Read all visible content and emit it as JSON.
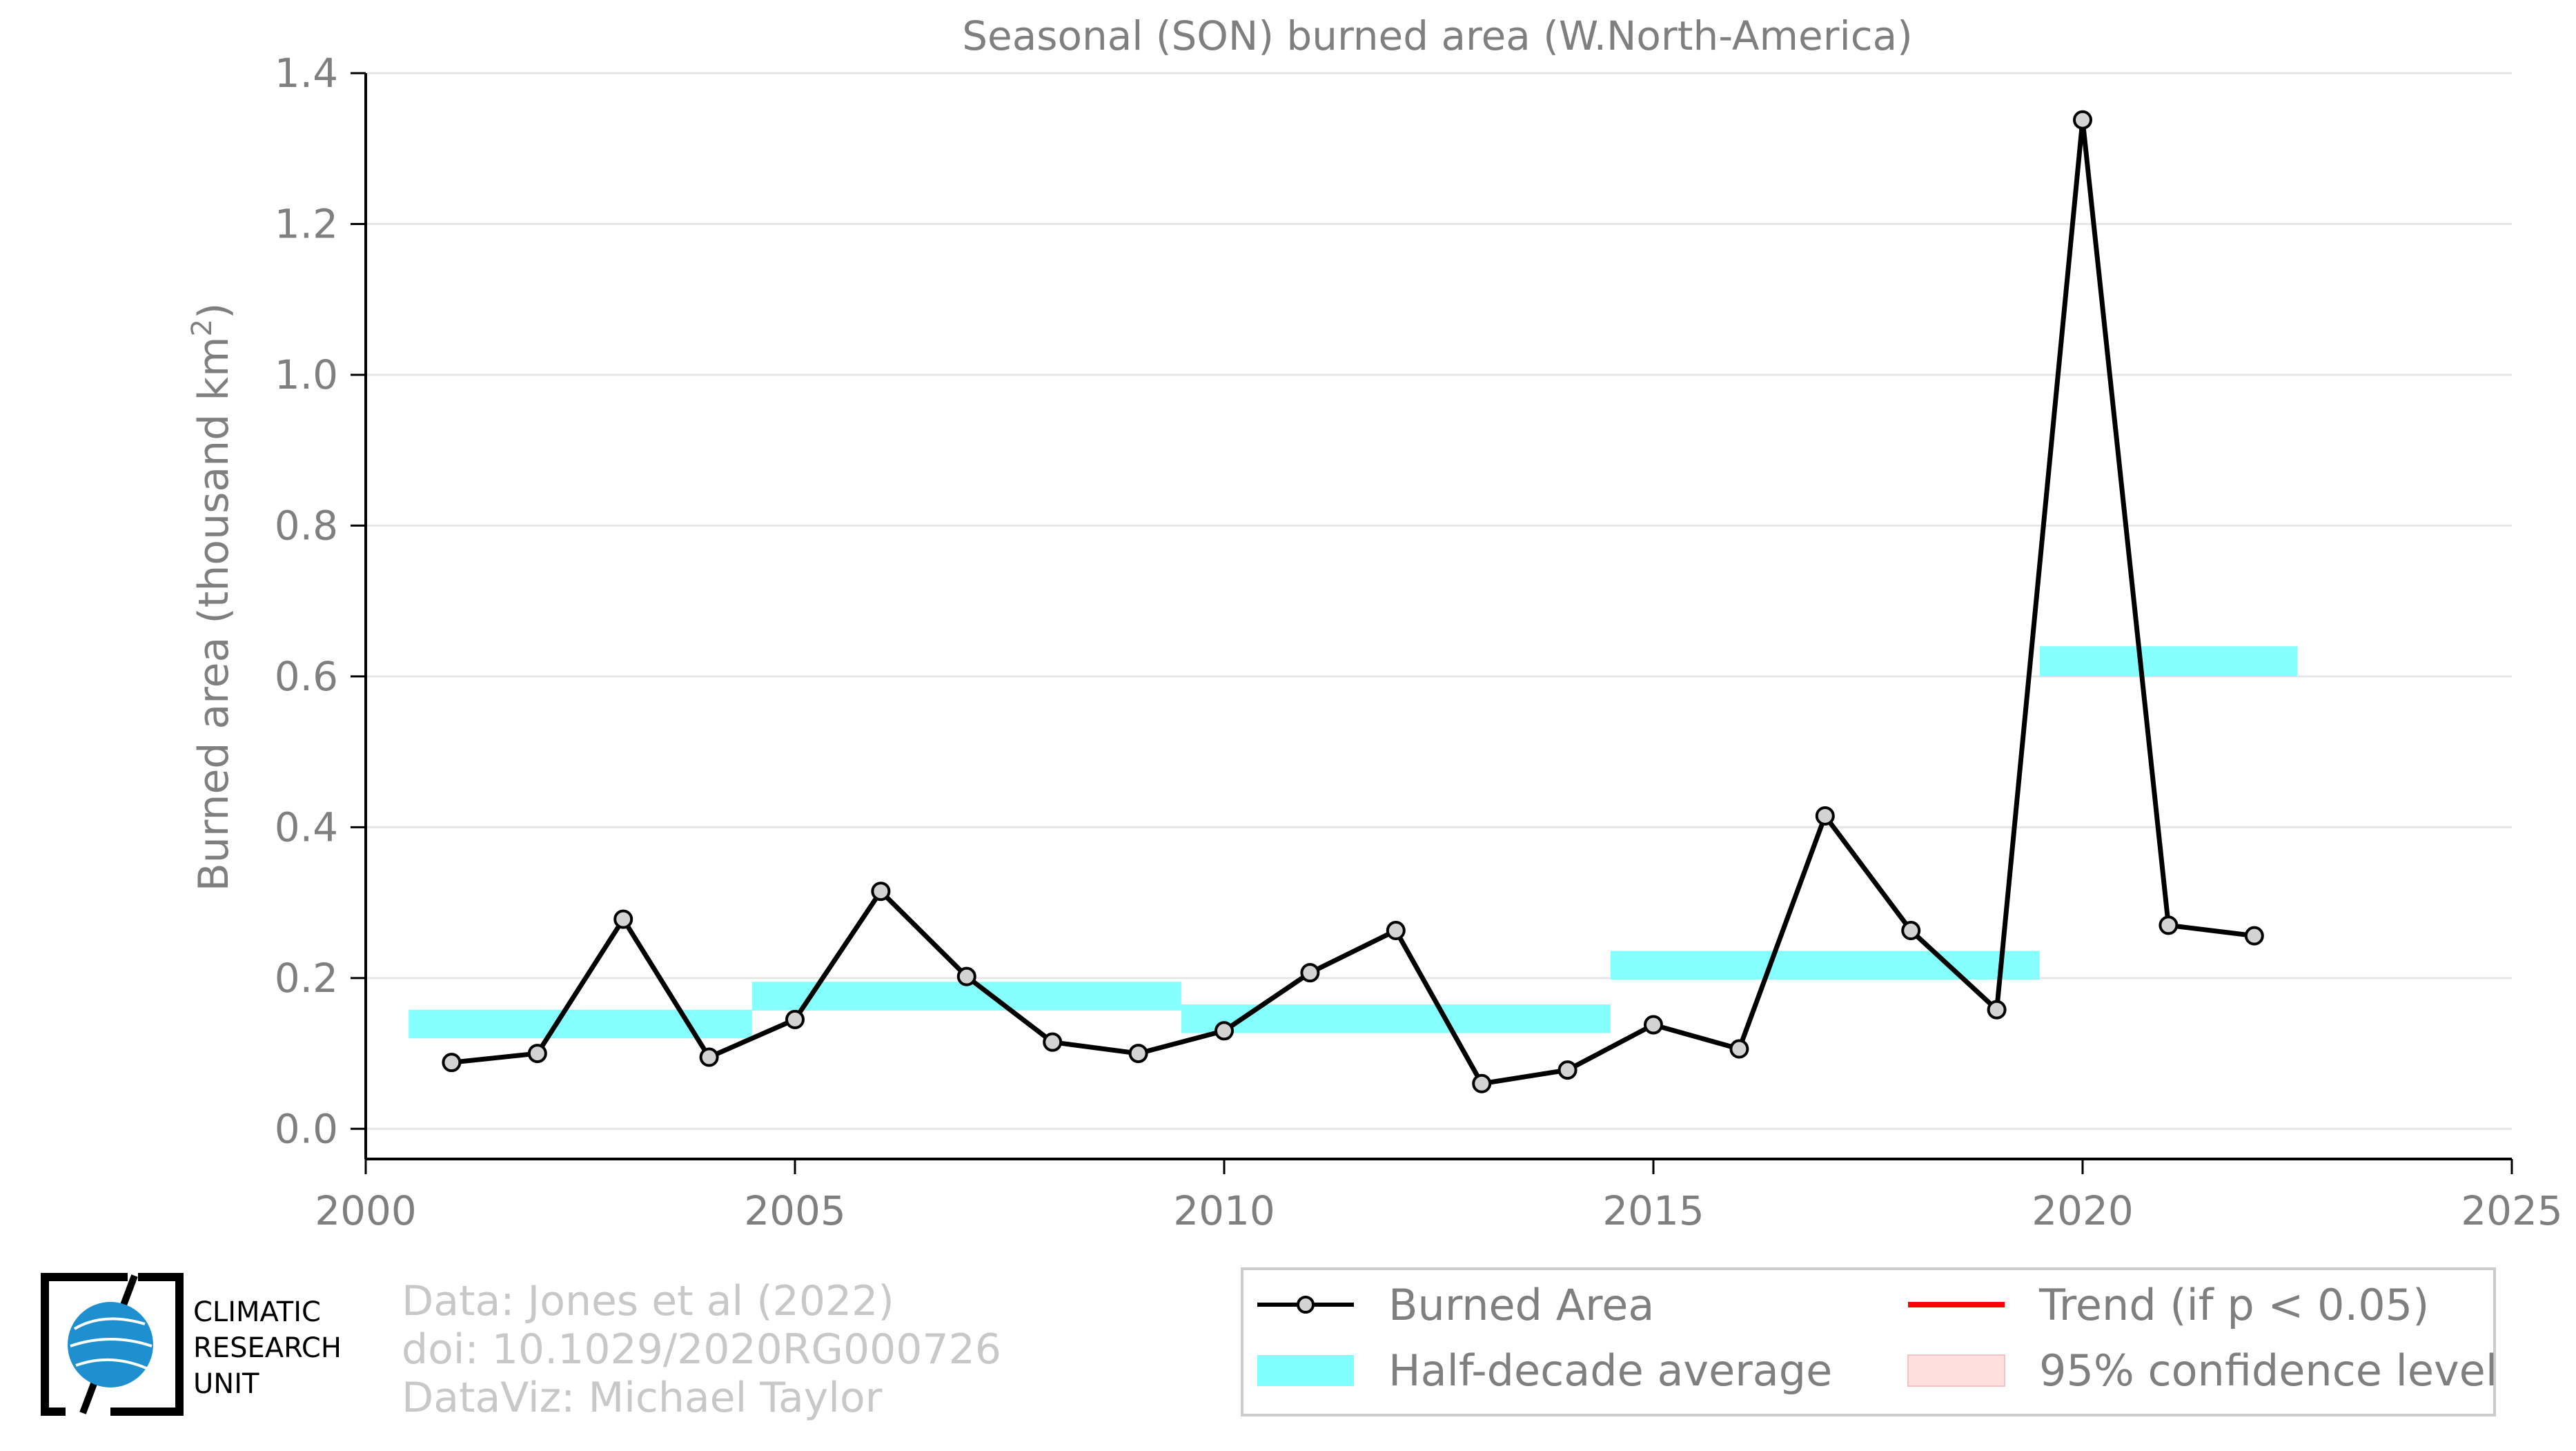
{
  "chart_data": {
    "type": "line",
    "title": "Seasonal (SON) burned area (W.North-America)",
    "ylabel": "Burned area (thousand km",
    "ylabel_superscript": "2",
    "ylabel_close": ")",
    "xlabel": "",
    "xlim": [
      2000,
      2025
    ],
    "ylim": [
      -0.04,
      1.4
    ],
    "x_ticks": [
      2000,
      2005,
      2010,
      2015,
      2020,
      2025
    ],
    "x_tick_labels": [
      "2000",
      "2005",
      "2010",
      "2015",
      "2020",
      "2025"
    ],
    "y_ticks": [
      0.0,
      0.2,
      0.4,
      0.6,
      0.8,
      1.0,
      1.2,
      1.4
    ],
    "y_tick_labels": [
      "0.0",
      "0.2",
      "0.4",
      "0.6",
      "0.8",
      "1.0",
      "1.2",
      "1.4"
    ],
    "grid": "horizontal",
    "legend_position": "bottom-right",
    "series": [
      {
        "name": "Burned Area",
        "color": "#000000",
        "marker_fill": "#d3d3d3",
        "x": [
          2001,
          2002,
          2003,
          2004,
          2005,
          2006,
          2007,
          2008,
          2009,
          2010,
          2011,
          2012,
          2013,
          2014,
          2015,
          2016,
          2017,
          2018,
          2019,
          2020,
          2021,
          2022
        ],
        "y": [
          0.088,
          0.1,
          0.278,
          0.095,
          0.145,
          0.315,
          0.202,
          0.115,
          0.1,
          0.13,
          0.207,
          0.263,
          0.06,
          0.078,
          0.138,
          0.106,
          0.415,
          0.263,
          0.158,
          1.338,
          0.27,
          0.256
        ]
      }
    ],
    "half_decade_average": {
      "name": "Half-decade average",
      "color": "#80ffff",
      "segments": [
        {
          "x_start": 2000.5,
          "x_end": 2004.5,
          "y_low": 0.12,
          "y_high": 0.158
        },
        {
          "x_start": 2004.5,
          "x_end": 2009.5,
          "y_low": 0.157,
          "y_high": 0.195
        },
        {
          "x_start": 2009.5,
          "x_end": 2014.5,
          "y_low": 0.127,
          "y_high": 0.165
        },
        {
          "x_start": 2014.5,
          "x_end": 2019.5,
          "y_low": 0.198,
          "y_high": 0.236
        },
        {
          "x_start": 2019.5,
          "x_end": 2022.5,
          "y_low": 0.6,
          "y_high": 0.64
        }
      ]
    },
    "legend": [
      {
        "label": "Burned Area",
        "kind": "line-marker",
        "color": "#000000"
      },
      {
        "label": "Trend (if p < 0.05)",
        "kind": "line",
        "color": "#ff0000"
      },
      {
        "label": "Half-decade average",
        "kind": "patch",
        "color": "#80ffff"
      },
      {
        "label": "95% confidence level",
        "kind": "patch",
        "color": "#ffdede"
      }
    ]
  },
  "credits": {
    "line1": "Data: Jones et al (2022)",
    "line2": "doi: 10.1029/2020RG000726",
    "line3": "DataViz: Michael Taylor"
  },
  "logo": {
    "line1": "CLIMATIC",
    "line2": "RESEARCH",
    "line3": "UNIT",
    "globe_color": "#1e90d0"
  }
}
